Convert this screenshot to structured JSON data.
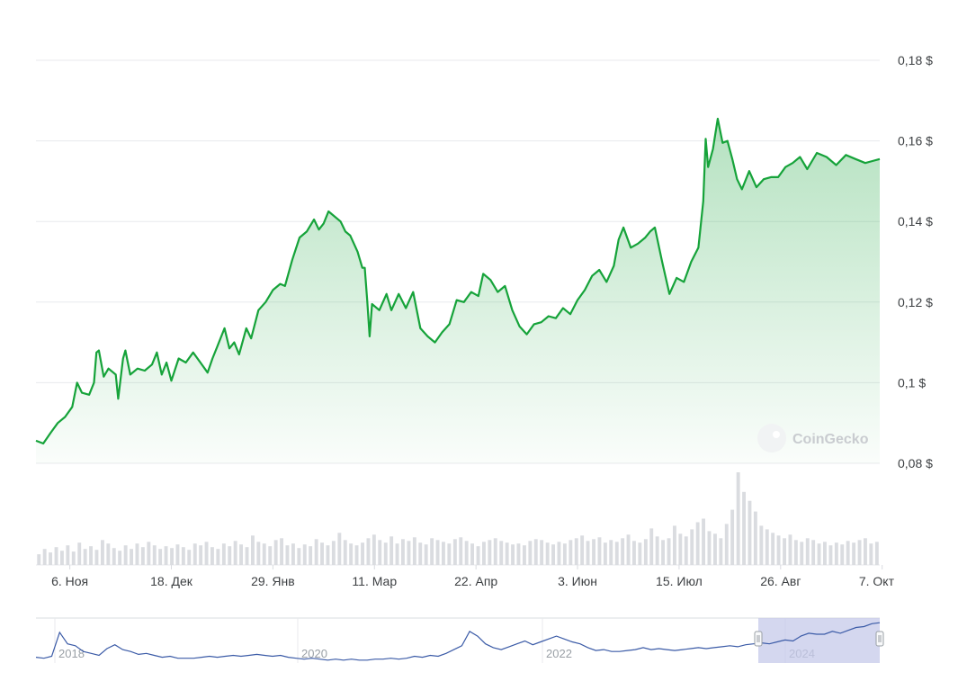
{
  "chart_data": {
    "type": "area",
    "title": "",
    "xlabel": "",
    "ylabel": "",
    "y_ticks": [
      "0,08 $",
      "0,1 $",
      "0,12 $",
      "0,14 $",
      "0,16 $",
      "0,18 $"
    ],
    "y_tick_values": [
      0.08,
      0.1,
      0.12,
      0.14,
      0.16,
      0.18
    ],
    "ylim": [
      0.08,
      0.18
    ],
    "x_ticks": [
      "6. Ноя",
      "18. Дек",
      "29. Янв",
      "11. Мар",
      "22. Апр",
      "3. Июн",
      "15. Июл",
      "26. Авг",
      "7. Окт"
    ],
    "x_tick_dates": [
      "2023-11-06",
      "2023-12-18",
      "2024-01-29",
      "2024-03-11",
      "2024-04-22",
      "2024-06-03",
      "2024-07-15",
      "2024-08-26",
      "2024-10-07"
    ],
    "xlim": [
      "2023-10-23",
      "2024-10-06"
    ],
    "grid": true,
    "line_color": "#16a33a",
    "fill_color": "#16a33a",
    "series": [
      {
        "values": [
          [
            "2023-10-23",
            0.0856
          ],
          [
            "2023-10-26",
            0.0849
          ],
          [
            "2023-10-29",
            0.0875
          ],
          [
            "2023-11-01",
            0.09
          ],
          [
            "2023-11-04",
            0.0915
          ],
          [
            "2023-11-07",
            0.094
          ],
          [
            "2023-11-09",
            0.1
          ],
          [
            "2023-11-11",
            0.0975
          ],
          [
            "2023-11-14",
            0.097
          ],
          [
            "2023-11-16",
            0.1
          ],
          [
            "2023-11-17",
            0.1075
          ],
          [
            "2023-11-18",
            0.108
          ],
          [
            "2023-11-20",
            0.1015
          ],
          [
            "2023-11-22",
            0.1035
          ],
          [
            "2023-11-25",
            0.102
          ],
          [
            "2023-11-26",
            0.096
          ],
          [
            "2023-11-28",
            0.106
          ],
          [
            "2023-11-29",
            0.108
          ],
          [
            "2023-12-01",
            0.102
          ],
          [
            "2023-12-04",
            0.1035
          ],
          [
            "2023-12-07",
            0.103
          ],
          [
            "2023-12-10",
            0.1045
          ],
          [
            "2023-12-12",
            0.1075
          ],
          [
            "2023-12-14",
            0.102
          ],
          [
            "2023-12-16",
            0.105
          ],
          [
            "2023-12-18",
            0.1005
          ],
          [
            "2023-12-21",
            0.106
          ],
          [
            "2023-12-24",
            0.105
          ],
          [
            "2023-12-27",
            0.1075
          ],
          [
            "2023-12-30",
            0.105
          ],
          [
            "2024-01-02",
            0.1025
          ],
          [
            "2024-01-04",
            0.106
          ],
          [
            "2024-01-06",
            0.109
          ],
          [
            "2024-01-09",
            0.1135
          ],
          [
            "2024-01-11",
            0.1085
          ],
          [
            "2024-01-13",
            0.11
          ],
          [
            "2024-01-15",
            0.107
          ],
          [
            "2024-01-18",
            0.1135
          ],
          [
            "2024-01-20",
            0.111
          ],
          [
            "2024-01-23",
            0.118
          ],
          [
            "2024-01-26",
            0.12
          ],
          [
            "2024-01-29",
            0.123
          ],
          [
            "2024-02-01",
            0.1245
          ],
          [
            "2024-02-03",
            0.124
          ],
          [
            "2024-02-06",
            0.1305
          ],
          [
            "2024-02-09",
            0.136
          ],
          [
            "2024-02-12",
            0.1375
          ],
          [
            "2024-02-15",
            0.1405
          ],
          [
            "2024-02-17",
            0.138
          ],
          [
            "2024-02-19",
            0.1395
          ],
          [
            "2024-02-21",
            0.1425
          ],
          [
            "2024-02-23",
            0.1415
          ],
          [
            "2024-02-26",
            0.14
          ],
          [
            "2024-02-28",
            0.1375
          ],
          [
            "2024-03-01",
            0.1365
          ],
          [
            "2024-03-04",
            0.1325
          ],
          [
            "2024-03-06",
            0.1285
          ],
          [
            "2024-03-07",
            0.1285
          ],
          [
            "2024-03-08",
            0.1205
          ],
          [
            "2024-03-09",
            0.1115
          ],
          [
            "2024-03-10",
            0.1195
          ],
          [
            "2024-03-13",
            0.118
          ],
          [
            "2024-03-16",
            0.122
          ],
          [
            "2024-03-18",
            0.118
          ],
          [
            "2024-03-21",
            0.122
          ],
          [
            "2024-03-24",
            0.1185
          ],
          [
            "2024-03-27",
            0.1225
          ],
          [
            "2024-03-30",
            0.1135
          ],
          [
            "2024-04-02",
            0.1115
          ],
          [
            "2024-04-05",
            0.11
          ],
          [
            "2024-04-08",
            0.1125
          ],
          [
            "2024-04-11",
            0.1145
          ],
          [
            "2024-04-14",
            0.1205
          ],
          [
            "2024-04-17",
            0.12
          ],
          [
            "2024-04-20",
            0.1225
          ],
          [
            "2024-04-23",
            0.1215
          ],
          [
            "2024-04-25",
            0.127
          ],
          [
            "2024-04-28",
            0.1255
          ],
          [
            "2024-05-01",
            0.1225
          ],
          [
            "2024-05-04",
            0.124
          ],
          [
            "2024-05-07",
            0.118
          ],
          [
            "2024-05-10",
            0.114
          ],
          [
            "2024-05-13",
            0.112
          ],
          [
            "2024-05-16",
            0.1145
          ],
          [
            "2024-05-19",
            0.115
          ],
          [
            "2024-05-22",
            0.1165
          ],
          [
            "2024-05-25",
            0.116
          ],
          [
            "2024-05-28",
            0.1185
          ],
          [
            "2024-05-31",
            0.117
          ],
          [
            "2024-06-03",
            0.1205
          ],
          [
            "2024-06-06",
            0.123
          ],
          [
            "2024-06-09",
            0.1265
          ],
          [
            "2024-06-12",
            0.128
          ],
          [
            "2024-06-15",
            0.125
          ],
          [
            "2024-06-18",
            0.129
          ],
          [
            "2024-06-20",
            0.1355
          ],
          [
            "2024-06-22",
            0.1385
          ],
          [
            "2024-06-25",
            0.1335
          ],
          [
            "2024-06-28",
            0.1345
          ],
          [
            "2024-07-01",
            0.136
          ],
          [
            "2024-07-03",
            0.1375
          ],
          [
            "2024-07-05",
            0.1385
          ],
          [
            "2024-07-08",
            0.13
          ],
          [
            "2024-07-11",
            0.122
          ],
          [
            "2024-07-14",
            0.126
          ],
          [
            "2024-07-17",
            0.125
          ],
          [
            "2024-07-20",
            0.13
          ],
          [
            "2024-07-23",
            0.1335
          ],
          [
            "2024-07-25",
            0.145
          ],
          [
            "2024-07-26",
            0.1605
          ],
          [
            "2024-07-27",
            0.1535
          ],
          [
            "2024-07-29",
            0.158
          ],
          [
            "2024-07-31",
            0.1655
          ],
          [
            "2024-08-02",
            0.1595
          ],
          [
            "2024-08-04",
            0.16
          ],
          [
            "2024-08-06",
            0.1555
          ],
          [
            "2024-08-08",
            0.1505
          ],
          [
            "2024-08-10",
            0.148
          ],
          [
            "2024-08-13",
            0.1525
          ],
          [
            "2024-08-16",
            0.1485
          ],
          [
            "2024-08-19",
            0.1505
          ],
          [
            "2024-08-22",
            0.151
          ],
          [
            "2024-08-25",
            0.151
          ],
          [
            "2024-08-28",
            0.1535
          ],
          [
            "2024-08-31",
            0.1545
          ],
          [
            "2024-09-03",
            0.156
          ],
          [
            "2024-09-06",
            0.153
          ],
          [
            "2024-09-10",
            0.157
          ],
          [
            "2024-09-14",
            0.156
          ],
          [
            "2024-09-18",
            0.154
          ],
          [
            "2024-09-22",
            0.1565
          ],
          [
            "2024-09-26",
            0.1555
          ],
          [
            "2024-09-30",
            0.1545
          ],
          [
            "2024-10-03",
            0.155
          ],
          [
            "2024-10-06",
            0.1555
          ]
        ]
      }
    ],
    "volume_series": {
      "values": [
        12,
        18,
        14,
        20,
        16,
        22,
        15,
        25,
        18,
        21,
        17,
        28,
        24,
        19,
        16,
        22,
        18,
        24,
        20,
        26,
        22,
        18,
        21,
        19,
        23,
        20,
        17,
        24,
        22,
        26,
        20,
        18,
        24,
        21,
        27,
        23,
        20,
        33,
        26,
        24,
        21,
        28,
        30,
        22,
        24,
        19,
        23,
        21,
        29,
        25,
        22,
        27,
        36,
        28,
        24,
        22,
        25,
        30,
        34,
        28,
        25,
        32,
        24,
        29,
        27,
        31,
        25,
        23,
        30,
        28,
        26,
        24,
        29,
        31,
        27,
        24,
        21,
        26,
        28,
        30,
        27,
        25,
        23,
        24,
        22,
        27,
        29,
        28,
        25,
        23,
        26,
        24,
        28,
        30,
        33,
        27,
        29,
        31,
        25,
        28,
        26,
        30,
        34,
        27,
        25,
        29,
        41,
        32,
        28,
        30,
        44,
        35,
        32,
        40,
        48,
        52,
        38,
        35,
        30,
        46,
        62,
        104,
        82,
        72,
        60,
        44,
        40,
        36,
        33,
        30,
        34,
        28,
        26,
        30,
        28,
        24,
        26,
        22,
        25,
        23,
        27,
        25,
        28,
        30,
        24,
        26
      ]
    },
    "navigator": {
      "x_ticks": [
        "2018",
        "2020",
        "2022",
        "2024"
      ],
      "values": [
        0.06,
        0.05,
        0.07,
        0.32,
        0.2,
        0.18,
        0.12,
        0.1,
        0.08,
        0.15,
        0.19,
        0.14,
        0.12,
        0.09,
        0.1,
        0.08,
        0.06,
        0.07,
        0.05,
        0.05,
        0.05,
        0.06,
        0.07,
        0.06,
        0.07,
        0.08,
        0.07,
        0.08,
        0.09,
        0.08,
        0.07,
        0.08,
        0.06,
        0.05,
        0.04,
        0.05,
        0.04,
        0.03,
        0.04,
        0.03,
        0.04,
        0.03,
        0.03,
        0.04,
        0.04,
        0.05,
        0.04,
        0.05,
        0.07,
        0.06,
        0.08,
        0.07,
        0.1,
        0.14,
        0.18,
        0.33,
        0.28,
        0.2,
        0.16,
        0.14,
        0.17,
        0.2,
        0.23,
        0.19,
        0.22,
        0.25,
        0.28,
        0.25,
        0.22,
        0.2,
        0.16,
        0.13,
        0.14,
        0.12,
        0.12,
        0.13,
        0.14,
        0.16,
        0.14,
        0.15,
        0.14,
        0.13,
        0.14,
        0.15,
        0.16,
        0.15,
        0.16,
        0.17,
        0.18,
        0.17,
        0.19,
        0.2,
        0.21,
        0.2,
        0.22,
        0.24,
        0.23,
        0.28,
        0.31,
        0.3,
        0.3,
        0.33,
        0.31,
        0.34,
        0.37,
        0.38,
        0.41,
        0.42
      ],
      "selected_range": [
        "2023-10-23",
        "2024-10-06"
      ]
    },
    "watermark": "CoinGecko"
  }
}
